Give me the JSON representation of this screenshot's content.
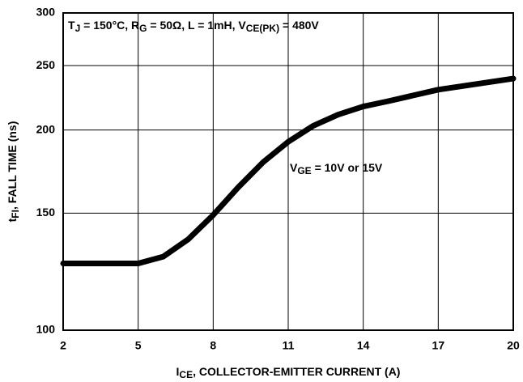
{
  "chart_data": {
    "type": "line",
    "annotations": [
      [
        {
          "text": "T"
        },
        {
          "text": "J",
          "sub": true
        },
        {
          "text": " = 150°C, R"
        },
        {
          "text": "G",
          "sub": true
        },
        {
          "text": " = 50Ω, L = 1mH, V"
        },
        {
          "text": "CE(PK)",
          "sub": true
        },
        {
          "text": " = 480V"
        }
      ],
      [
        {
          "text": "V"
        },
        {
          "text": "GE",
          "sub": true
        },
        {
          "text": " = 10V or 15V"
        }
      ]
    ],
    "xlabel": [
      {
        "text": "I"
      },
      {
        "text": "CE",
        "sub": true
      },
      {
        "text": ", COLLECTOR-EMITTER CURRENT (A)"
      }
    ],
    "ylabel": [
      {
        "text": "t"
      },
      {
        "text": "FI",
        "sub": true
      },
      {
        "text": ", FALL TIME (ns)"
      }
    ],
    "x": [
      2,
      5,
      6,
      7,
      8,
      9,
      10,
      11,
      12,
      13,
      14,
      15,
      17,
      20
    ],
    "values": [
      126,
      126,
      129,
      137,
      149,
      164,
      179,
      192,
      203,
      211,
      217,
      221,
      230,
      239
    ],
    "color": "#000000",
    "xlim": [
      2,
      20
    ],
    "xticks": [
      2,
      5,
      8,
      11,
      14,
      17,
      20
    ],
    "ylim": [
      100,
      300
    ],
    "yticks": [
      100,
      150,
      200,
      250,
      300
    ],
    "ylog": true,
    "grid": true
  }
}
